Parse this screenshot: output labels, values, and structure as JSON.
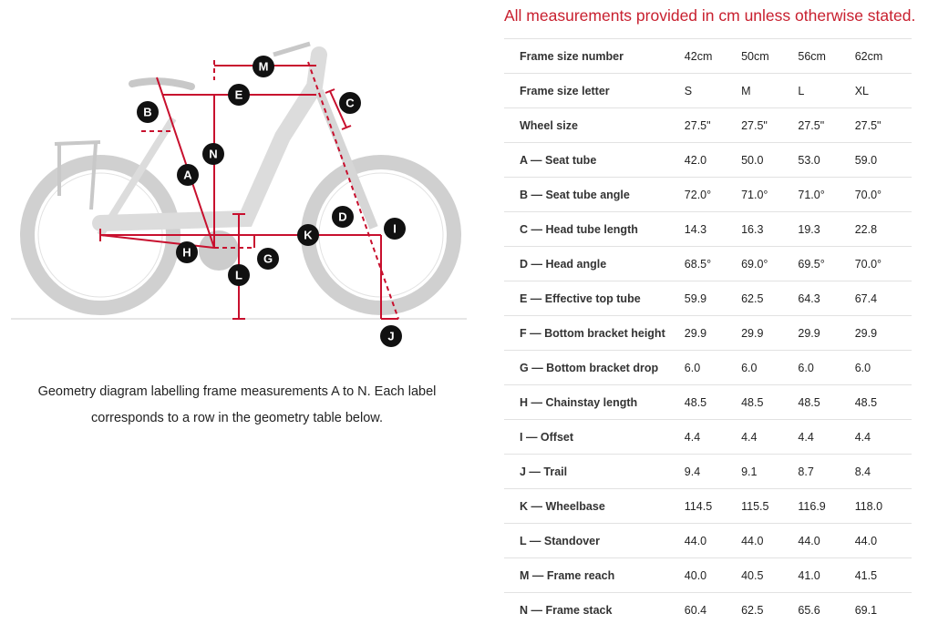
{
  "notice": "All measurements provided in cm unless otherwise stated.",
  "caption": "Geometry diagram labelling frame measurements A to N. Each label corresponds to a row in the geometry table below.",
  "colors": {
    "accent": "#c8202f",
    "annotation": "#c8102e"
  },
  "diagram_labels": [
    "A",
    "B",
    "C",
    "D",
    "E",
    "G",
    "H",
    "I",
    "J",
    "K",
    "L",
    "M",
    "N"
  ],
  "table": {
    "rows": [
      {
        "label": "Frame size number",
        "values": [
          "42cm",
          "50cm",
          "56cm",
          "62cm"
        ]
      },
      {
        "label": "Frame size letter",
        "values": [
          "S",
          "M",
          "L",
          "XL"
        ]
      },
      {
        "label": "Wheel size",
        "values": [
          "27.5\"",
          "27.5\"",
          "27.5\"",
          "27.5\""
        ]
      },
      {
        "label": "A — Seat tube",
        "values": [
          "42.0",
          "50.0",
          "53.0",
          "59.0"
        ]
      },
      {
        "label": "B — Seat tube angle",
        "values": [
          "72.0°",
          "71.0°",
          "71.0°",
          "70.0°"
        ]
      },
      {
        "label": "C — Head tube length",
        "values": [
          "14.3",
          "16.3",
          "19.3",
          "22.8"
        ]
      },
      {
        "label": "D — Head angle",
        "values": [
          "68.5°",
          "69.0°",
          "69.5°",
          "70.0°"
        ]
      },
      {
        "label": "E — Effective top tube",
        "values": [
          "59.9",
          "62.5",
          "64.3",
          "67.4"
        ]
      },
      {
        "label": "F — Bottom bracket height",
        "values": [
          "29.9",
          "29.9",
          "29.9",
          "29.9"
        ]
      },
      {
        "label": "G — Bottom bracket drop",
        "values": [
          "6.0",
          "6.0",
          "6.0",
          "6.0"
        ]
      },
      {
        "label": "H — Chainstay length",
        "values": [
          "48.5",
          "48.5",
          "48.5",
          "48.5"
        ]
      },
      {
        "label": "I — Offset",
        "values": [
          "4.4",
          "4.4",
          "4.4",
          "4.4"
        ]
      },
      {
        "label": "J — Trail",
        "values": [
          "9.4",
          "9.1",
          "8.7",
          "8.4"
        ]
      },
      {
        "label": "K — Wheelbase",
        "values": [
          "114.5",
          "115.5",
          "116.9",
          "118.0"
        ]
      },
      {
        "label": "L — Standover",
        "values": [
          "44.0",
          "44.0",
          "44.0",
          "44.0"
        ]
      },
      {
        "label": "M — Frame reach",
        "values": [
          "40.0",
          "40.5",
          "41.0",
          "41.5"
        ]
      },
      {
        "label": "N — Frame stack",
        "values": [
          "60.4",
          "62.5",
          "65.6",
          "69.1"
        ]
      }
    ]
  }
}
